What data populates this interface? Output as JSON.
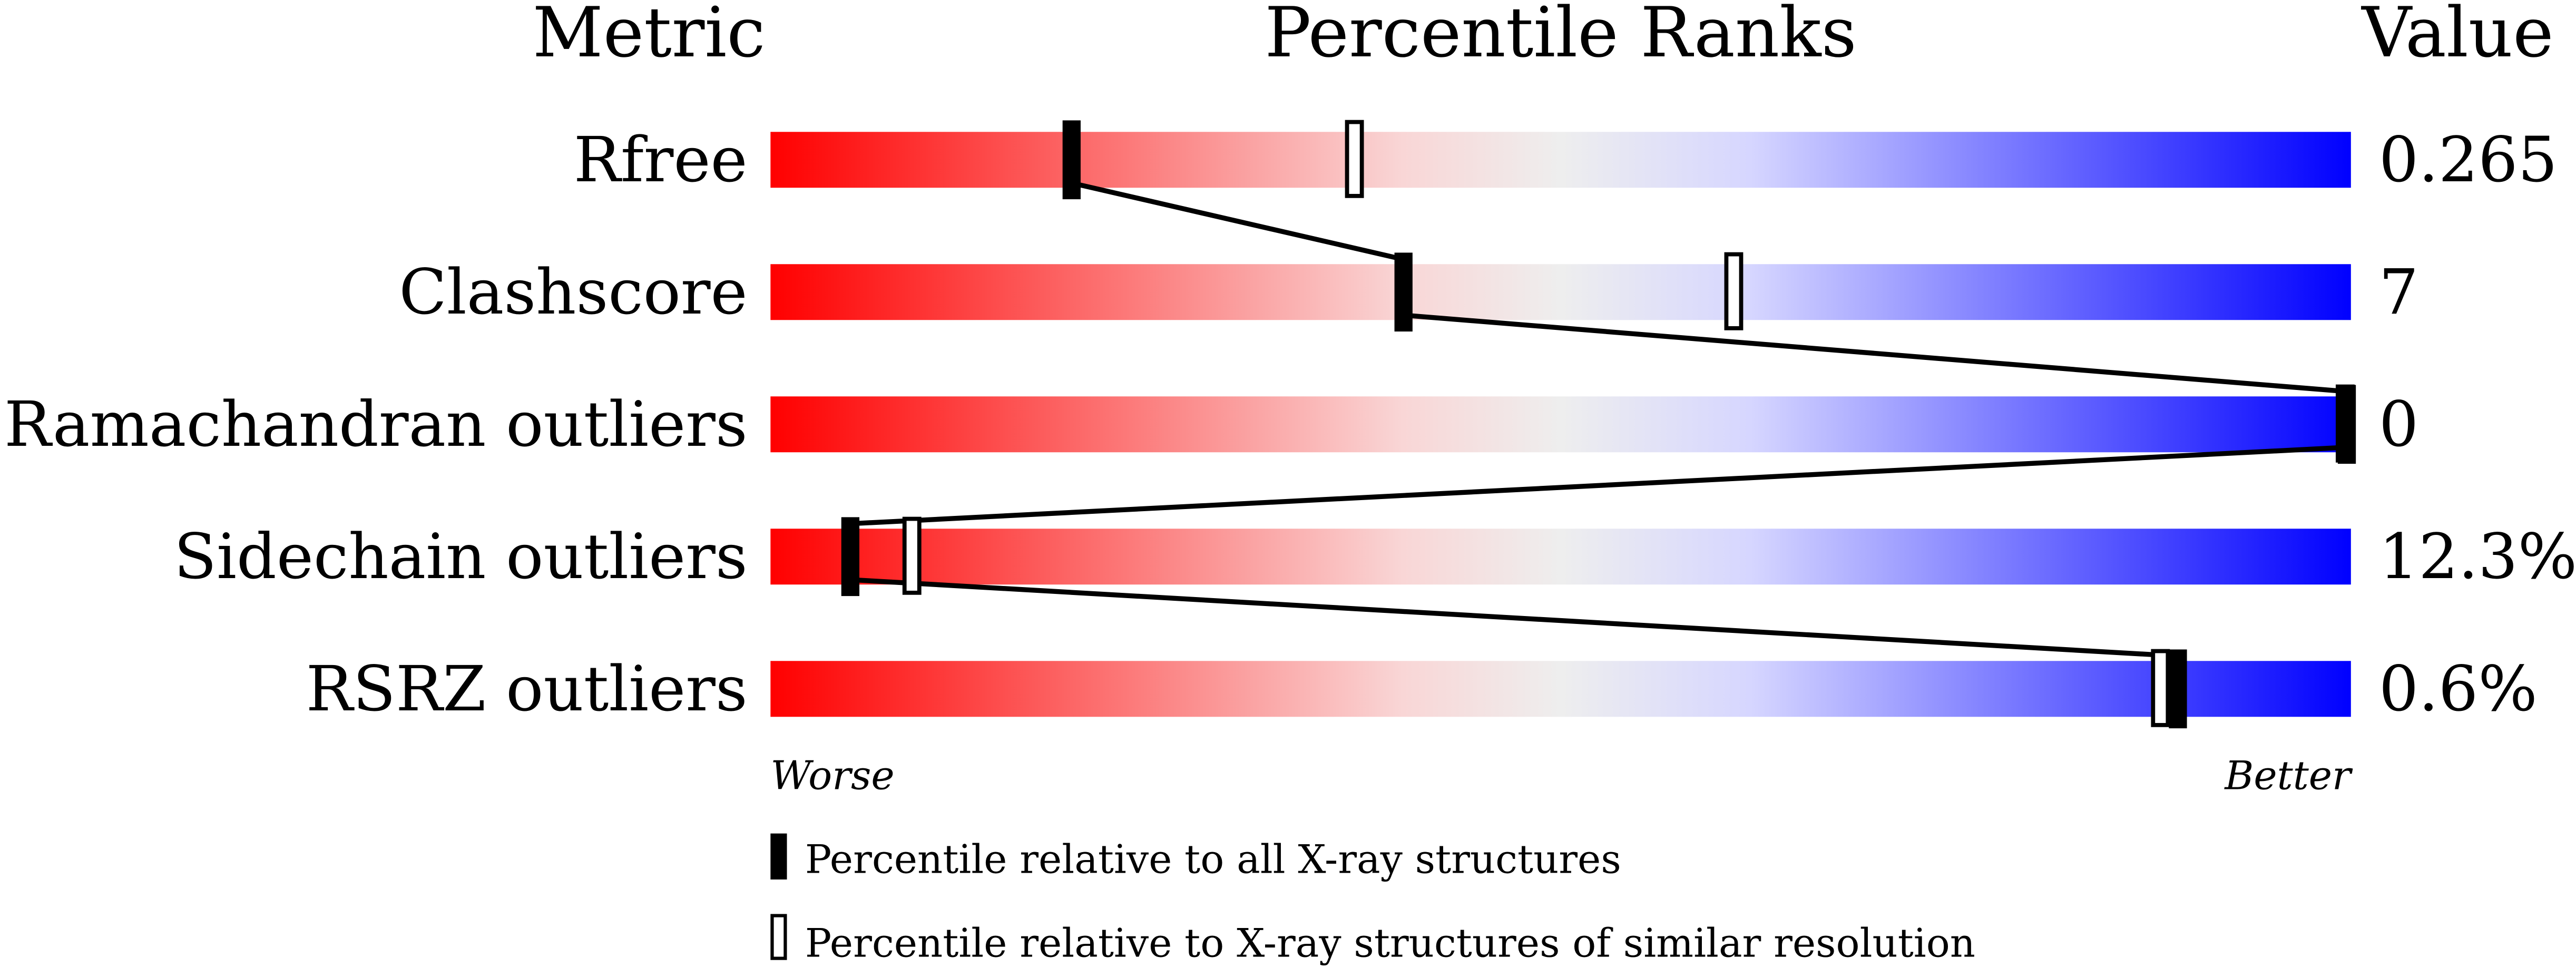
{
  "chart_data": {
    "type": "percentile-slider",
    "headers": {
      "metric": "Metric",
      "ranks": "Percentile Ranks",
      "value": "Value"
    },
    "xlim": [
      0,
      100
    ],
    "axis_labels": {
      "left": "Worse",
      "right": "Better"
    },
    "gradient_colors": [
      "#ff0000",
      "#f9d6d6",
      "#eeeeee",
      "#d6d6ff",
      "#0000ff"
    ],
    "metrics": [
      {
        "name": "Rfree",
        "value": "0.265",
        "percentile_all": 19,
        "percentile_similar": 37
      },
      {
        "name": "Clashscore",
        "value": "7",
        "percentile_all": 40,
        "percentile_similar": 61
      },
      {
        "name": "Ramachandran outliers",
        "value": "0",
        "percentile_all": 100,
        "percentile_similar": 100
      },
      {
        "name": "Sidechain outliers",
        "value": "12.3%",
        "percentile_all": 5,
        "percentile_similar": 9
      },
      {
        "name": "RSRZ outliers",
        "value": "0.6%",
        "percentile_all": 89,
        "percentile_similar": 88
      }
    ],
    "legend": [
      {
        "marker": "filled",
        "label": "Percentile relative to all X-ray structures"
      },
      {
        "marker": "open",
        "label": "Percentile relative to X-ray structures of similar resolution"
      }
    ]
  }
}
